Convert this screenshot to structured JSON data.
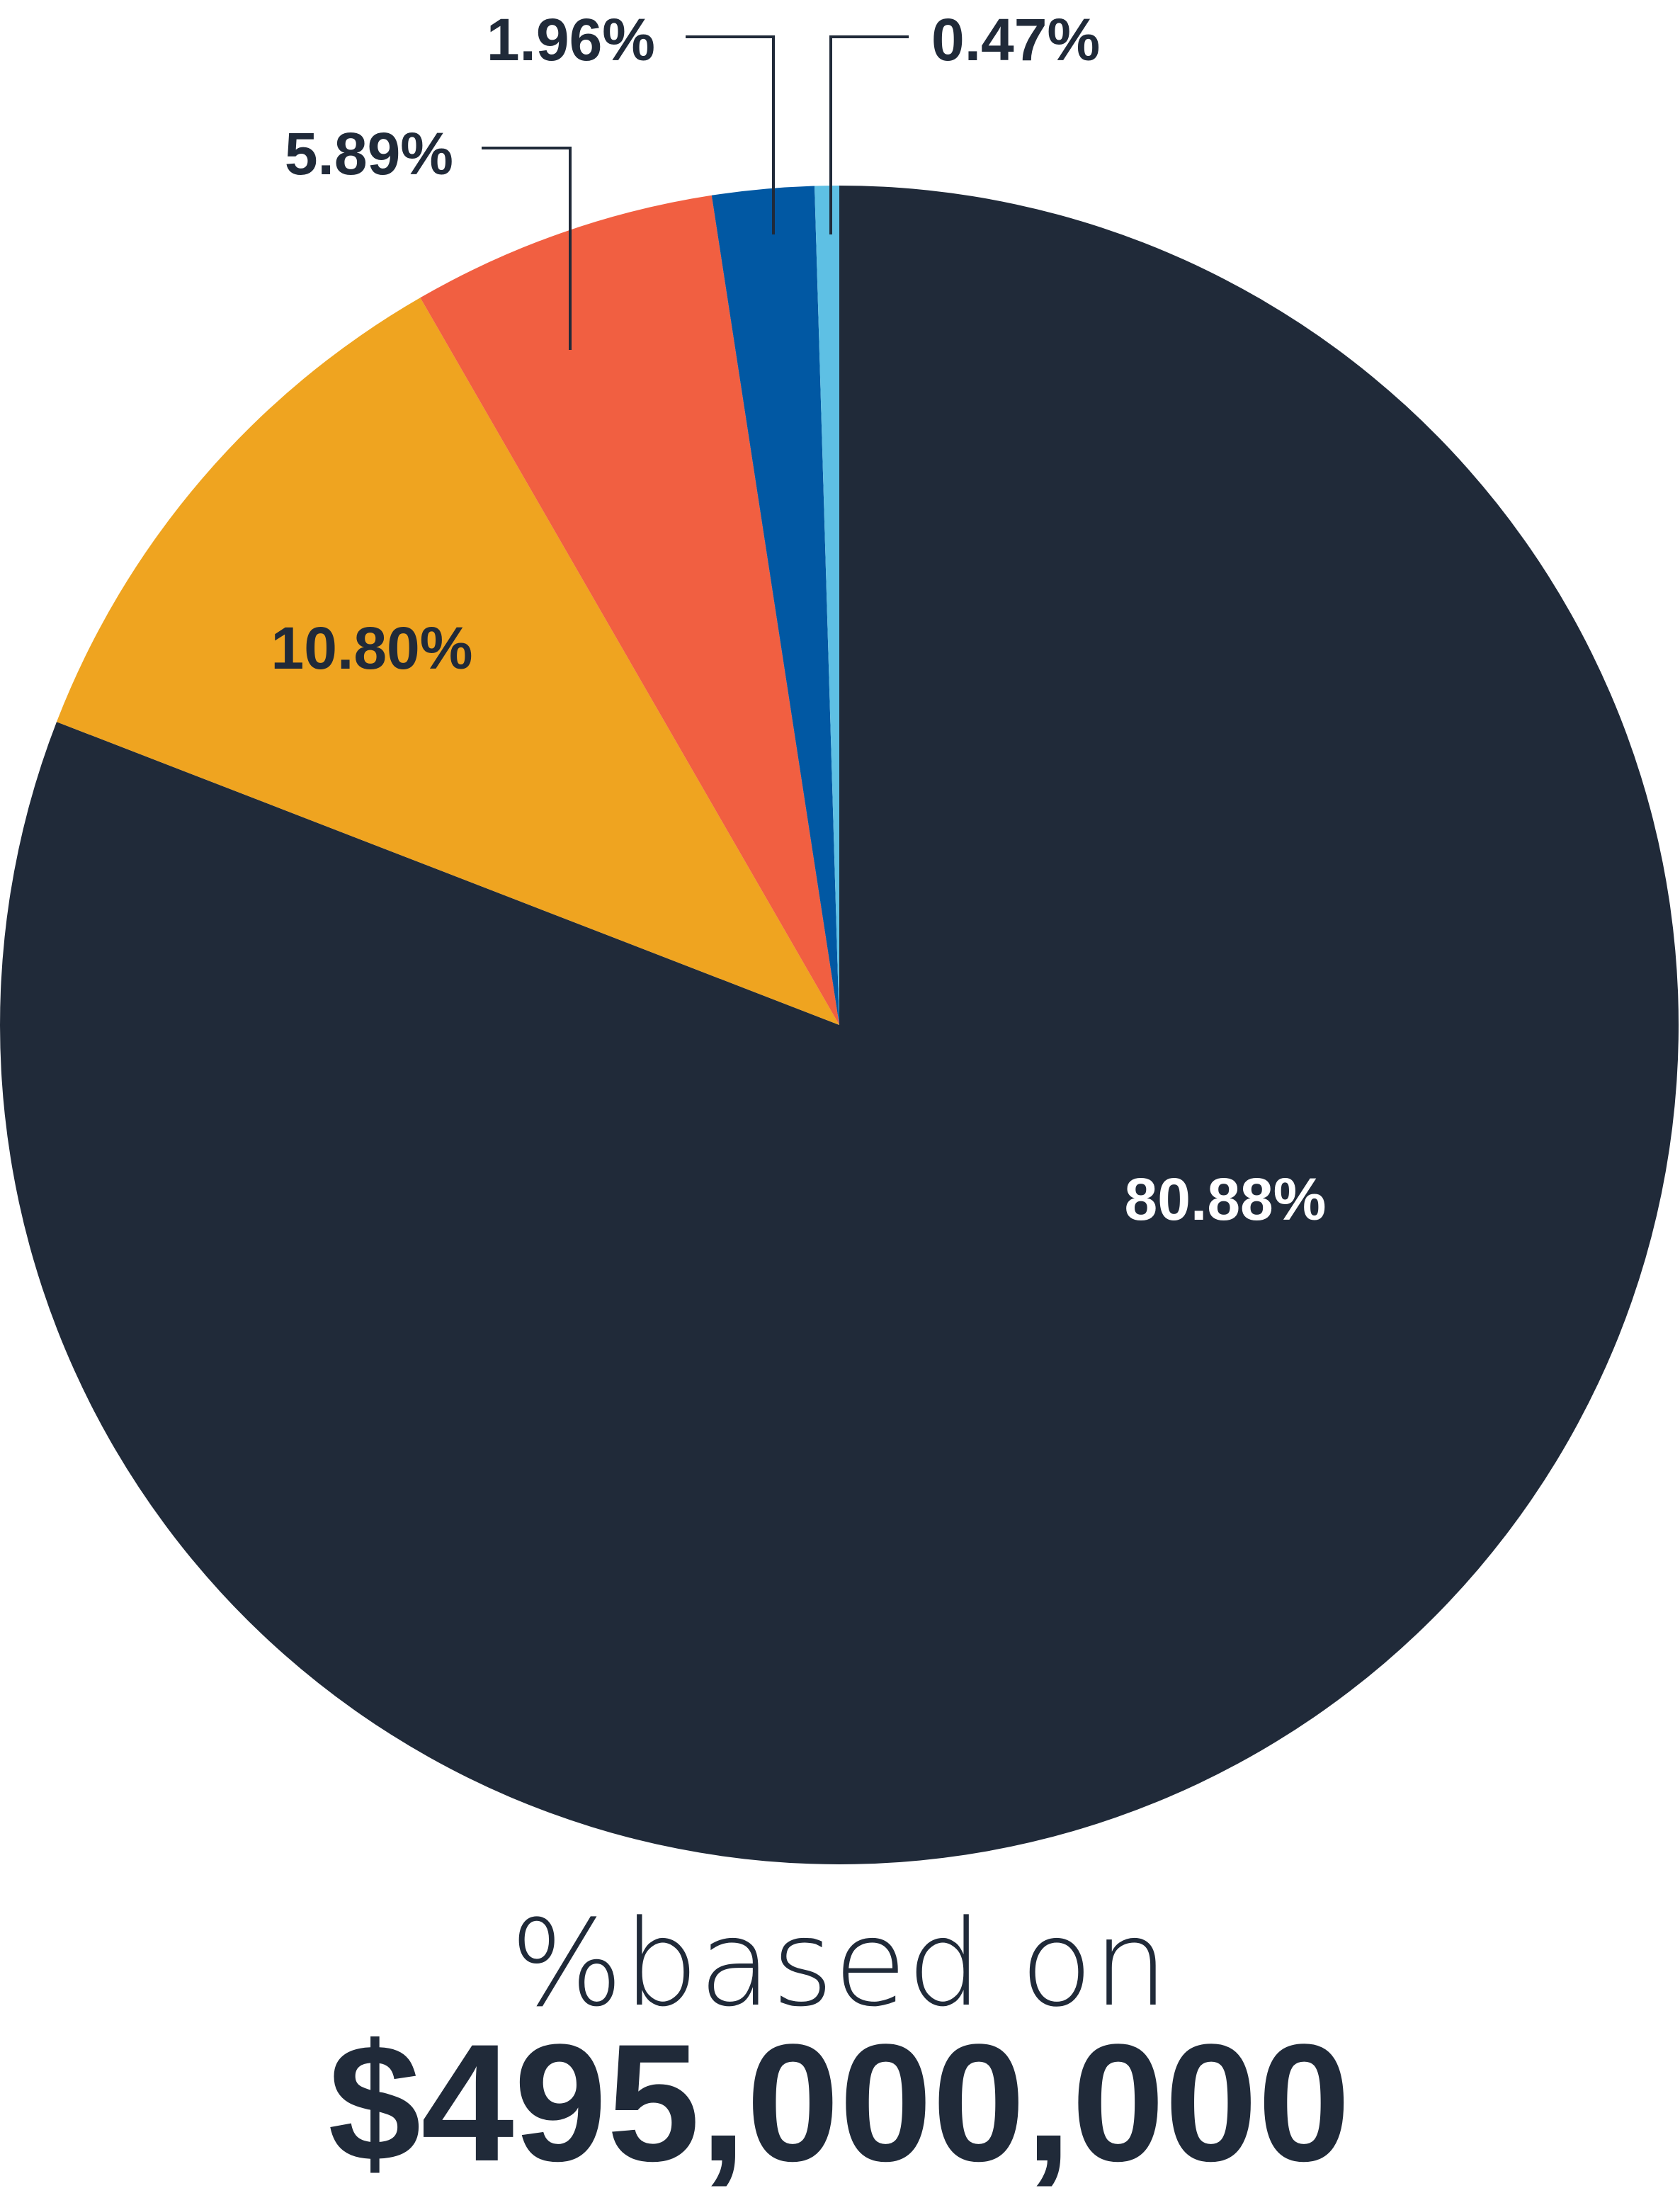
{
  "chart_data": {
    "type": "pie",
    "start": "12 o'clock",
    "direction": "clockwise",
    "slices": [
      {
        "label": "80.88%",
        "value": 80.88,
        "color": "#202a39",
        "label_color": "#ffffff"
      },
      {
        "label": "10.80%",
        "value": 10.8,
        "color": "#efa420",
        "label_color": "#202a39"
      },
      {
        "label": "5.89%",
        "value": 5.89,
        "color": "#f15f41",
        "label_color": "#202a39"
      },
      {
        "label": "1.96%",
        "value": 1.96,
        "color": "#0158a3",
        "label_color": "#202a39"
      },
      {
        "label": "0.47%",
        "value": 0.47,
        "color": "#5ec0e4",
        "label_color": "#202a39"
      }
    ]
  },
  "caption": {
    "line1": "%based on",
    "line2": "$495,000,000",
    "color": "#202a39"
  }
}
